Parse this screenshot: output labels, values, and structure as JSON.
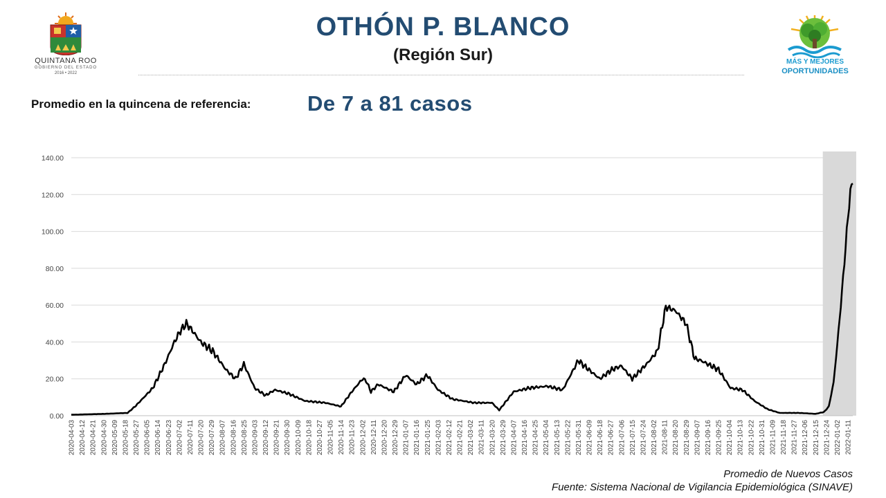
{
  "header": {
    "title": "OTHÓN P. BLANCO",
    "subtitle": "(Región Sur)",
    "left_logo": {
      "line1": "QUINTANA ROO",
      "line2": "GOBIERNO DEL ESTADO",
      "line3": "2016 • 2022"
    },
    "right_logo": {
      "line1": "MÁS Y MEJORES",
      "line2": "OPORTUNIDADES"
    }
  },
  "summary": {
    "label": "Promedio en la quincena de referencia:",
    "value": "De 7 a 81 casos"
  },
  "footer": {
    "series_note": "Promedio de Nuevos Casos",
    "source": "Fuente: Sistema Nacional de Vigilancia Epidemiológica (SINAVE)"
  },
  "colors": {
    "title": "#234c72",
    "line": "#000000",
    "highlight": "#d9d9d9",
    "grid": "#d9d9d9"
  },
  "chart_data": {
    "type": "line",
    "ylim": [
      0,
      140
    ],
    "yticks": [
      "0.00",
      "20.00",
      "40.00",
      "60.00",
      "80.00",
      "100.00",
      "120.00",
      "140.00"
    ],
    "grid": "horizontal",
    "x_tick_start": "2020-04-03",
    "x_tick_step_days": 9,
    "x_end": "2022-01-15",
    "highlight_range": [
      "2021-12-21",
      "2022-01-15"
    ],
    "x_tick_labels": [
      "2020-04-03",
      "2020-04-12",
      "2020-04-21",
      "2020-04-30",
      "2020-05-09",
      "2020-05-18",
      "2020-05-27",
      "2020-06-05",
      "2020-06-14",
      "2020-06-23",
      "2020-07-02",
      "2020-07-11",
      "2020-07-20",
      "2020-07-29",
      "2020-08-07",
      "2020-08-16",
      "2020-08-25",
      "2020-09-03",
      "2020-09-12",
      "2020-09-21",
      "2020-09-30",
      "2020-10-09",
      "2020-10-18",
      "2020-10-27",
      "2020-11-05",
      "2020-11-14",
      "2020-11-23",
      "2020-12-02",
      "2020-12-11",
      "2020-12-20",
      "2020-12-29",
      "2021-01-07",
      "2021-01-16",
      "2021-01-25",
      "2021-02-03",
      "2021-02-12",
      "2021-02-21",
      "2021-03-02",
      "2021-03-11",
      "2021-03-20",
      "2021-03-29",
      "2021-04-07",
      "2021-04-16",
      "2021-04-25",
      "2021-05-04",
      "2021-05-13",
      "2021-05-22",
      "2021-05-31",
      "2021-06-09",
      "2021-06-18",
      "2021-06-27",
      "2021-07-06",
      "2021-07-15",
      "2021-07-24",
      "2021-08-02",
      "2021-08-11",
      "2021-08-20",
      "2021-08-29",
      "2021-09-07",
      "2021-09-16",
      "2021-09-25",
      "2021-10-04",
      "2021-10-13",
      "2021-10-22",
      "2021-10-31",
      "2021-11-09",
      "2021-11-18",
      "2021-11-27",
      "2021-12-06",
      "2021-12-15",
      "2021-12-24",
      "2022-01-02",
      "2022-01-11"
    ],
    "series": [
      {
        "x": [
          "2020-04-03",
          "2020-05-01",
          "2020-05-20",
          "2020-05-27",
          "2020-06-10",
          "2020-06-20",
          "2020-06-28",
          "2020-07-03",
          "2020-07-08",
          "2020-07-12",
          "2020-07-20",
          "2020-07-30",
          "2020-08-10",
          "2020-08-18",
          "2020-08-25",
          "2020-09-03",
          "2020-09-12",
          "2020-09-20",
          "2020-10-01",
          "2020-10-15",
          "2020-11-01",
          "2020-11-14",
          "2020-11-23",
          "2020-12-02",
          "2020-12-05",
          "2020-12-09",
          "2020-12-15",
          "2020-12-28",
          "2021-01-07",
          "2021-01-16",
          "2021-01-25",
          "2021-02-03",
          "2021-02-15",
          "2021-03-05",
          "2021-03-20",
          "2021-03-26",
          "2021-04-07",
          "2021-04-20",
          "2021-05-05",
          "2021-05-18",
          "2021-05-31",
          "2021-06-05",
          "2021-06-18",
          "2021-06-28",
          "2021-07-06",
          "2021-07-15",
          "2021-07-27",
          "2021-08-05",
          "2021-08-12",
          "2021-08-20",
          "2021-08-29",
          "2021-09-05",
          "2021-09-10",
          "2021-09-25",
          "2021-10-05",
          "2021-10-15",
          "2021-10-25",
          "2021-11-05",
          "2021-11-15",
          "2021-12-01",
          "2021-12-15",
          "2021-12-22",
          "2021-12-26",
          "2021-12-30",
          "2022-01-03",
          "2022-01-07",
          "2022-01-10",
          "2022-01-13",
          "2022-01-15"
        ],
        "y": [
          0.5,
          1.0,
          1.5,
          5.5,
          15.0,
          28.0,
          40.0,
          46.0,
          50.0,
          47.0,
          40.0,
          35.0,
          25.0,
          20.0,
          28.0,
          15.0,
          11.0,
          14.0,
          12.0,
          8.0,
          7.0,
          5.0,
          13.0,
          20.0,
          19.0,
          13.0,
          17.0,
          13.0,
          22.0,
          17.0,
          22.0,
          14.0,
          9.0,
          7.0,
          7.0,
          3.0,
          13.0,
          15.0,
          16.0,
          14.0,
          30.0,
          27.0,
          20.0,
          25.0,
          27.0,
          20.0,
          28.0,
          35.0,
          59.0,
          57.0,
          50.0,
          31.0,
          30.0,
          25.0,
          15.0,
          14.0,
          8.0,
          3.5,
          1.5,
          1.5,
          1.0,
          2.0,
          5.0,
          18.0,
          45.0,
          75.0,
          100.0,
          122.0,
          126.0
        ]
      }
    ]
  }
}
